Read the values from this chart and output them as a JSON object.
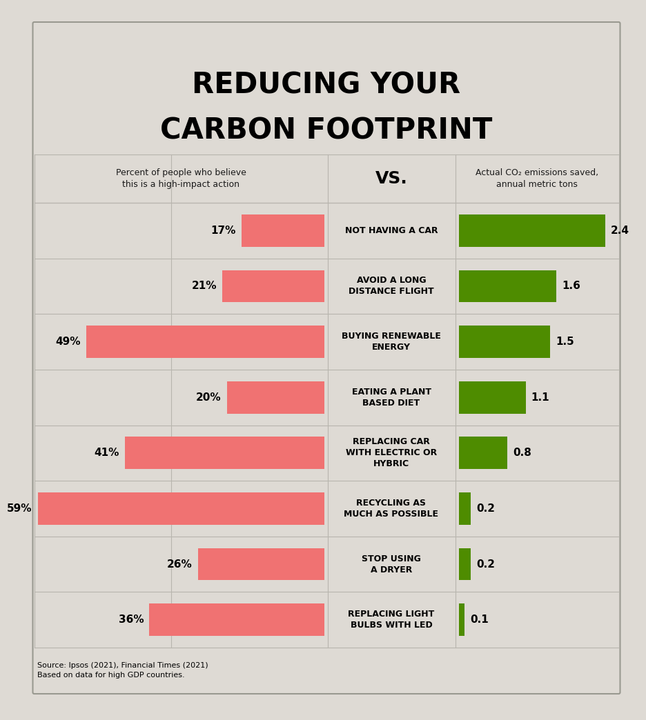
{
  "title_line1": "REDUCING YOUR",
  "title_line2": "CARBON FOOTPRINT",
  "left_header": "Percent of people who believe\nthis is a high-impact action",
  "vs_text": "VS.",
  "right_header": "Actual CO₂ emissions saved,\nannual metric tons",
  "source": "Source: Ipsos (2021), Financial Times (2021)\nBased on data for high GDP countries.",
  "background_color": "#dedad4",
  "grid_color": "#b8b5ae",
  "categories": [
    "NOT HAVING A CAR",
    "AVOID A LONG\nDISTANCE FLIGHT",
    "BUYING RENEWABLE\nENERGY",
    "EATING A PLANT\nBASED DIET",
    "REPLACING CAR\nWITH ELECTRIC OR\nHYBRIC",
    "RECYCLING AS\nMUCH AS POSSIBLE",
    "STOP USING\nA DRYER",
    "REPLACING LIGHT\nBULBS WITH LED"
  ],
  "belief_pct": [
    17,
    21,
    49,
    20,
    41,
    59,
    26,
    36
  ],
  "actual_co2": [
    2.4,
    1.6,
    1.5,
    1.1,
    0.8,
    0.2,
    0.2,
    0.1
  ],
  "red_color": "#f07272",
  "green_color": "#4e8c00",
  "max_belief": 59,
  "max_co2": 2.4,
  "title_fontsize": 30,
  "header_fontsize": 9,
  "vs_fontsize": 18,
  "label_fontsize": 9,
  "pct_fontsize": 11,
  "co2_fontsize": 11,
  "cat_fontsize": 9,
  "source_fontsize": 8
}
